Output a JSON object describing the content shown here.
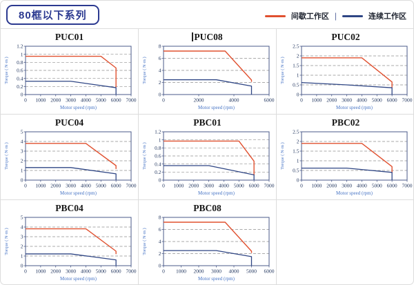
{
  "page": {
    "badge": "80框以下系列",
    "legend": {
      "intermittent_label": "间歇工作区",
      "continuous_label": "连续工作区",
      "separator": "|",
      "intermittent_color": "#e0502f",
      "continuous_color": "#2e4584"
    }
  },
  "chart_data": [
    {
      "type": "line",
      "title": "PUC01",
      "cursor_before_title": false,
      "xlabel": "Motor speed (rpm)",
      "ylabel": "Torque ( N·m )",
      "xlim": [
        0,
        7000
      ],
      "xticks": [
        0,
        1000,
        2000,
        3000,
        4000,
        5000,
        6000,
        7000
      ],
      "ylim": [
        0,
        1.2
      ],
      "yticks": [
        0,
        0.2,
        0.4,
        0.6,
        0.8,
        1,
        1.2
      ],
      "grid": "dashed-horizontal",
      "legend_position": "none",
      "series": [
        {
          "name": "间歇工作区",
          "color": "#e0502f",
          "points": [
            [
              0,
              0.95
            ],
            [
              5000,
              0.95
            ],
            [
              6000,
              0.66
            ],
            [
              6000,
              0.18
            ]
          ]
        },
        {
          "name": "连续工作区",
          "color": "#2e4584",
          "points": [
            [
              0,
              0.33
            ],
            [
              3000,
              0.33
            ],
            [
              6000,
              0.17
            ],
            [
              6000,
              0
            ]
          ]
        }
      ]
    },
    {
      "type": "line",
      "title": "PUC08",
      "cursor_before_title": true,
      "xlabel": "Motor speed (rpm)",
      "ylabel": "Torque ( N·m )",
      "xlim": [
        0,
        6000
      ],
      "xticks": [
        0,
        2000,
        4000,
        6000
      ],
      "ylim": [
        0,
        8
      ],
      "yticks": [
        0,
        2,
        4,
        6,
        8
      ],
      "grid": "dashed-horizontal",
      "legend_position": "none",
      "series": [
        {
          "name": "间歇工作区",
          "color": "#e0502f",
          "points": [
            [
              0,
              7.2
            ],
            [
              3500,
              7.2
            ],
            [
              5000,
              2.4
            ],
            [
              5000,
              2.1
            ]
          ]
        },
        {
          "name": "连续工作区",
          "color": "#2e4584",
          "points": [
            [
              0,
              2.45
            ],
            [
              3000,
              2.45
            ],
            [
              5000,
              1.4
            ],
            [
              5000,
              0
            ]
          ]
        }
      ]
    },
    {
      "type": "line",
      "title": "PUC02",
      "cursor_before_title": false,
      "xlabel": "Motor speed (rpm)",
      "ylabel": "Torque ( N·m )",
      "xlim": [
        0,
        7000
      ],
      "xticks": [
        0,
        1000,
        2000,
        3000,
        4000,
        5000,
        6000,
        7000
      ],
      "ylim": [
        0,
        2.5
      ],
      "yticks": [
        0,
        0.5,
        1,
        1.5,
        2,
        2.5
      ],
      "grid": "dashed-horizontal",
      "legend_position": "none",
      "series": [
        {
          "name": "间歇工作区",
          "color": "#e0502f",
          "points": [
            [
              0,
              1.9
            ],
            [
              4000,
              1.9
            ],
            [
              6000,
              0.65
            ],
            [
              6000,
              0.35
            ]
          ]
        },
        {
          "name": "连续工作区",
          "color": "#2e4584",
          "points": [
            [
              0,
              0.62
            ],
            [
              3000,
              0.5
            ],
            [
              6000,
              0.35
            ],
            [
              6000,
              0
            ]
          ]
        }
      ]
    },
    {
      "type": "line",
      "title": "PUC04",
      "cursor_before_title": false,
      "xlabel": "Motor speed (rpm)",
      "ylabel": "Torque ( N·m )",
      "xlim": [
        0,
        7000
      ],
      "xticks": [
        0,
        1000,
        2000,
        3000,
        4000,
        5000,
        6000,
        7000
      ],
      "ylim": [
        0,
        5
      ],
      "yticks": [
        0,
        1,
        2,
        3,
        4,
        5
      ],
      "grid": "dashed-horizontal",
      "legend_position": "none",
      "series": [
        {
          "name": "间歇工作区",
          "color": "#e0502f",
          "points": [
            [
              0,
              3.8
            ],
            [
              4000,
              3.8
            ],
            [
              6000,
              1.5
            ],
            [
              6000,
              1.15
            ]
          ]
        },
        {
          "name": "连续工作区",
          "color": "#2e4584",
          "points": [
            [
              0,
              1.3
            ],
            [
              3000,
              1.3
            ],
            [
              6000,
              0.65
            ],
            [
              6000,
              0
            ]
          ]
        }
      ]
    },
    {
      "type": "line",
      "title": "PBC01",
      "cursor_before_title": false,
      "xlabel": "Motor speed (rpm)",
      "ylabel": "Torque ( N·m )",
      "xlim": [
        0,
        7000
      ],
      "xticks": [
        0,
        1000,
        2000,
        3000,
        4000,
        5000,
        6000,
        7000
      ],
      "ylim": [
        0,
        1.2
      ],
      "yticks": [
        0,
        0.2,
        0.4,
        0.6,
        0.8,
        1,
        1.2
      ],
      "grid": "dashed-horizontal",
      "legend_position": "none",
      "series": [
        {
          "name": "间歇工作区",
          "color": "#e0502f",
          "points": [
            [
              0,
              0.97
            ],
            [
              5000,
              0.97
            ],
            [
              6000,
              0.47
            ],
            [
              6000,
              0.12
            ]
          ]
        },
        {
          "name": "连续工作区",
          "color": "#2e4584",
          "points": [
            [
              0,
              0.36
            ],
            [
              3000,
              0.36
            ],
            [
              6000,
              0.13
            ],
            [
              6000,
              0
            ]
          ]
        }
      ]
    },
    {
      "type": "line",
      "title": "PBC02",
      "cursor_before_title": false,
      "xlabel": "Motor speed (rpm)",
      "ylabel": "Torque ( N·m )",
      "xlim": [
        0,
        7000
      ],
      "xticks": [
        0,
        1000,
        2000,
        3000,
        4000,
        5000,
        6000,
        7000
      ],
      "ylim": [
        0,
        2.5
      ],
      "yticks": [
        0,
        0.5,
        1,
        1.5,
        2,
        2.5
      ],
      "grid": "dashed-horizontal",
      "legend_position": "none",
      "series": [
        {
          "name": "间歇工作区",
          "color": "#e0502f",
          "points": [
            [
              0,
              1.9
            ],
            [
              4000,
              1.9
            ],
            [
              6000,
              0.7
            ],
            [
              6000,
              0.38
            ]
          ]
        },
        {
          "name": "连续工作区",
          "color": "#2e4584",
          "points": [
            [
              0,
              0.62
            ],
            [
              3000,
              0.62
            ],
            [
              6000,
              0.4
            ],
            [
              6000,
              0
            ]
          ]
        }
      ]
    },
    {
      "type": "line",
      "title": "PBC04",
      "cursor_before_title": false,
      "xlabel": "Motor speed (rpm)",
      "ylabel": "Torque ( N·m )",
      "xlim": [
        0,
        7000
      ],
      "xticks": [
        0,
        1000,
        2000,
        3000,
        4000,
        5000,
        6000,
        7000
      ],
      "ylim": [
        0,
        5
      ],
      "yticks": [
        0,
        1,
        2,
        3,
        4,
        5
      ],
      "grid": "dashed-horizontal",
      "legend_position": "none",
      "series": [
        {
          "name": "间歇工作区",
          "color": "#e0502f",
          "points": [
            [
              0,
              3.82
            ],
            [
              4000,
              3.82
            ],
            [
              6000,
              1.5
            ],
            [
              6000,
              1.2
            ]
          ]
        },
        {
          "name": "连续工作区",
          "color": "#2e4584",
          "points": [
            [
              0,
              1.22
            ],
            [
              3000,
              1.22
            ],
            [
              6000,
              0.6
            ],
            [
              6000,
              0
            ]
          ]
        }
      ]
    },
    {
      "type": "line",
      "title": "PBC08",
      "cursor_before_title": false,
      "xlabel": "Motor speed (rpm)",
      "ylabel": "Torque ( N·m )",
      "xlim": [
        0,
        6000
      ],
      "xticks": [
        0,
        1000,
        2000,
        3000,
        4000,
        5000,
        6000
      ],
      "ylim": [
        0,
        8
      ],
      "yticks": [
        0,
        2,
        4,
        6,
        8
      ],
      "grid": "dashed-horizontal",
      "legend_position": "none",
      "series": [
        {
          "name": "间歇工作区",
          "color": "#e0502f",
          "points": [
            [
              0,
              7.2
            ],
            [
              3500,
              7.2
            ],
            [
              5000,
              2.4
            ],
            [
              5000,
              2.1
            ]
          ]
        },
        {
          "name": "连续工作区",
          "color": "#2e4584",
          "points": [
            [
              0,
              2.5
            ],
            [
              3000,
              2.5
            ],
            [
              5000,
              1.5
            ],
            [
              5000,
              0
            ]
          ]
        }
      ]
    }
  ]
}
